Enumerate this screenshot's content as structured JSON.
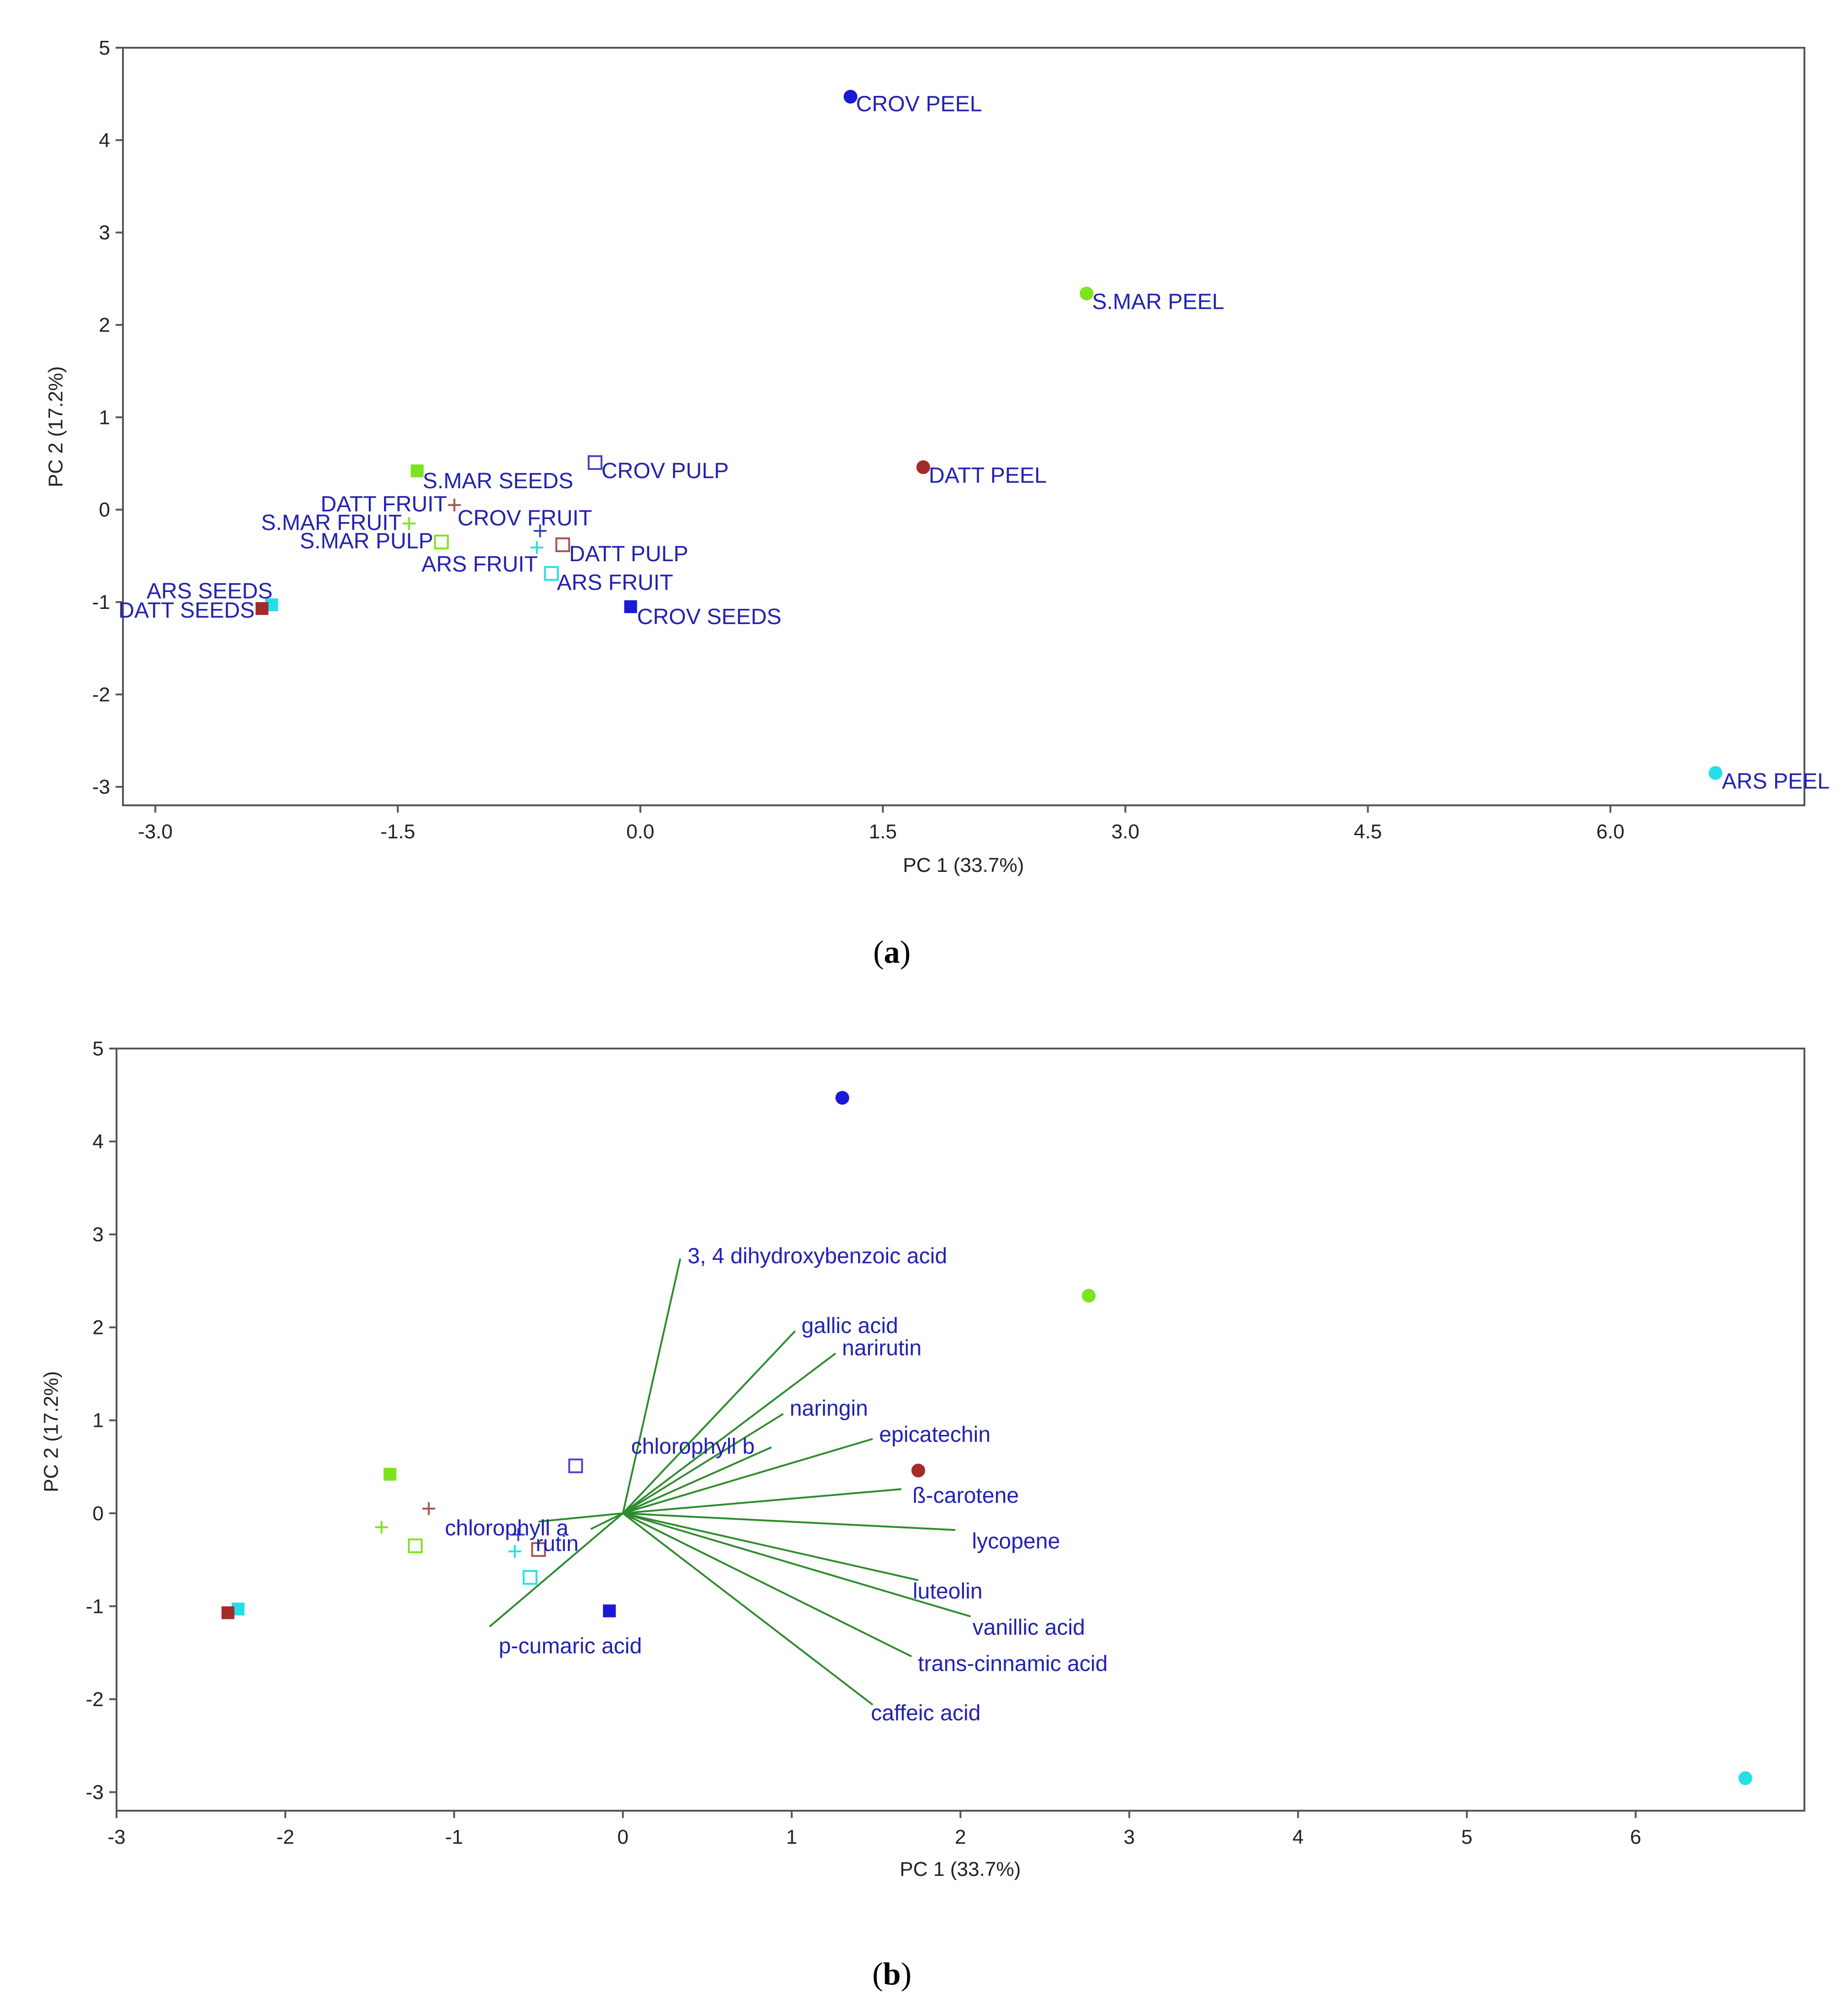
{
  "chart_data": [
    {
      "type": "scatter",
      "panel_label": "(a)",
      "panel_letter": "a",
      "xlabel": "PC 1 (33.7%)",
      "ylabel": "PC 2 (17.2%)",
      "xlim": [
        -3.2,
        7.2
      ],
      "ylim": [
        -3.2,
        5
      ],
      "xticks": [
        -3.0,
        -1.5,
        0.0,
        1.5,
        3.0,
        4.5,
        6.0
      ],
      "xtick_labels": [
        "-3.0",
        "-1.5",
        "0.0",
        "1.5",
        "3.0",
        "4.5",
        "6.0"
      ],
      "yticks": [
        -3,
        -2,
        -1,
        0,
        1,
        2,
        3,
        4,
        5
      ],
      "ytick_labels": [
        "-3",
        "-2",
        "-1",
        "0",
        "1",
        "2",
        "3",
        "4",
        "5"
      ],
      "points": [
        {
          "label": "CROV PEEL",
          "x": 1.3,
          "y": 4.47,
          "color": "#1a1ad6",
          "marker": "circle"
        },
        {
          "label": "S.MAR PEEL",
          "x": 2.76,
          "y": 2.34,
          "color": "#7ee21f",
          "marker": "circle"
        },
        {
          "label": "DATT PEEL",
          "x": 1.75,
          "y": 0.46,
          "color": "#a52a2a",
          "marker": "circle"
        },
        {
          "label": "ARS PEEL",
          "x": 6.65,
          "y": -2.85,
          "color": "#22e0e6",
          "marker": "circle"
        },
        {
          "label": "CROV PULP",
          "x": -0.28,
          "y": 0.51,
          "color": "#4444c8",
          "marker": "square-open"
        },
        {
          "label": "S.MAR SEEDS",
          "x": -1.38,
          "y": 0.42,
          "color": "#7ee21f",
          "marker": "square"
        },
        {
          "label": "DATT FRUIT",
          "x": -1.15,
          "y": 0.05,
          "color": "#a55050",
          "marker": "plus"
        },
        {
          "label": "S.MAR FRUIT",
          "x": -1.43,
          "y": -0.15,
          "color": "#7ee21f",
          "marker": "plus"
        },
        {
          "label": "CROV FRUIT",
          "x": -0.62,
          "y": -0.23,
          "color": "#3344cc",
          "marker": "plus"
        },
        {
          "label": "S.MAR PULP",
          "x": -1.23,
          "y": -0.35,
          "color": "#7ee21f",
          "marker": "square-open"
        },
        {
          "label": "ARS FRUIT",
          "x": -0.64,
          "y": -0.41,
          "color": "#22e0e6",
          "marker": "plus"
        },
        {
          "label": "DATT PULP",
          "x": -0.48,
          "y": -0.38,
          "color": "#a55050",
          "marker": "square-open"
        },
        {
          "label": "ARS FRUIT",
          "x": -0.55,
          "y": -0.69,
          "color": "#22e0e6",
          "marker": "square-open"
        },
        {
          "label": "ARS SEEDS",
          "x": -2.28,
          "y": -1.03,
          "color": "#22e0e6",
          "marker": "square"
        },
        {
          "label": "DATT SEEDS",
          "x": -2.34,
          "y": -1.07,
          "color": "#a52a2a",
          "marker": "square"
        },
        {
          "label": "CROV SEEDS",
          "x": -0.06,
          "y": -1.05,
          "color": "#1a1ad6",
          "marker": "square"
        }
      ]
    },
    {
      "type": "biplot",
      "panel_label": "(b)",
      "panel_letter": "b",
      "xlabel": "PC 1 (33.7%)",
      "ylabel": "PC 2 (17.2%)",
      "xlim": [
        -3,
        7
      ],
      "ylim": [
        -3.2,
        5
      ],
      "xticks": [
        -3,
        -2,
        -1,
        0,
        1,
        2,
        3,
        4,
        5,
        6
      ],
      "xtick_labels": [
        "-3",
        "-2",
        "-1",
        "0",
        "1",
        "2",
        "3",
        "4",
        "5",
        "6"
      ],
      "yticks": [
        -3,
        -2,
        -1,
        0,
        1,
        2,
        3,
        4,
        5
      ],
      "ytick_labels": [
        "-3",
        "-2",
        "-1",
        "0",
        "1",
        "2",
        "3",
        "4",
        "5"
      ],
      "points": [
        {
          "x": 1.3,
          "y": 4.47,
          "color": "#1a1ad6",
          "marker": "circle"
        },
        {
          "x": 2.76,
          "y": 2.34,
          "color": "#7ee21f",
          "marker": "circle"
        },
        {
          "x": 1.75,
          "y": 0.46,
          "color": "#a52a2a",
          "marker": "circle"
        },
        {
          "x": 6.65,
          "y": -2.85,
          "color": "#22e0e6",
          "marker": "circle"
        },
        {
          "x": -0.28,
          "y": 0.51,
          "color": "#4444c8",
          "marker": "square-open"
        },
        {
          "x": -1.38,
          "y": 0.42,
          "color": "#7ee21f",
          "marker": "square"
        },
        {
          "x": -1.15,
          "y": 0.05,
          "color": "#a55050",
          "marker": "plus"
        },
        {
          "x": -1.43,
          "y": -0.15,
          "color": "#7ee21f",
          "marker": "plus"
        },
        {
          "x": -0.62,
          "y": -0.23,
          "color": "#3344cc",
          "marker": "plus"
        },
        {
          "x": -1.23,
          "y": -0.35,
          "color": "#7ee21f",
          "marker": "square-open"
        },
        {
          "x": -0.64,
          "y": -0.41,
          "color": "#22e0e6",
          "marker": "plus"
        },
        {
          "x": -0.5,
          "y": -0.39,
          "color": "#a55050",
          "marker": "square-open"
        },
        {
          "x": -0.55,
          "y": -0.69,
          "color": "#22e0e6",
          "marker": "square-open"
        },
        {
          "x": -2.28,
          "y": -1.03,
          "color": "#22e0e6",
          "marker": "square"
        },
        {
          "x": -2.34,
          "y": -1.07,
          "color": "#a52a2a",
          "marker": "square"
        },
        {
          "x": -0.08,
          "y": -1.05,
          "color": "#1a1ad6",
          "marker": "square"
        }
      ],
      "vectors": [
        {
          "label": "3, 4 dihydroxybenzoic acid",
          "x": 0.34,
          "y": 2.74
        },
        {
          "label": "gallic acid",
          "x": 1.02,
          "y": 1.96
        },
        {
          "label": "narirutin",
          "x": 1.26,
          "y": 1.72
        },
        {
          "label": "naringin",
          "x": 0.95,
          "y": 1.07
        },
        {
          "label": "chlorophyll b",
          "x": 0.88,
          "y": 0.71
        },
        {
          "label": "epicatechin",
          "x": 1.48,
          "y": 0.8
        },
        {
          "label": "ß-carotene",
          "x": 1.65,
          "y": 0.26
        },
        {
          "label": "lycopene",
          "x": 1.97,
          "y": -0.18
        },
        {
          "label": "luteolin",
          "x": 1.75,
          "y": -0.72
        },
        {
          "label": "vanillic acid",
          "x": 2.06,
          "y": -1.11
        },
        {
          "label": "trans-cinnamic acid",
          "x": 1.71,
          "y": -1.54
        },
        {
          "label": "caffeic acid",
          "x": 1.48,
          "y": -2.06
        },
        {
          "label": "chlorophyll a",
          "x": -0.5,
          "y": -0.09
        },
        {
          "label": "rutin",
          "x": -0.19,
          "y": -0.17
        },
        {
          "label": "p-cumaric acid",
          "x": -0.79,
          "y": -1.22
        }
      ]
    }
  ],
  "colors": {
    "vector_line": "#2e8b2e",
    "label_text": "#2222b0"
  }
}
